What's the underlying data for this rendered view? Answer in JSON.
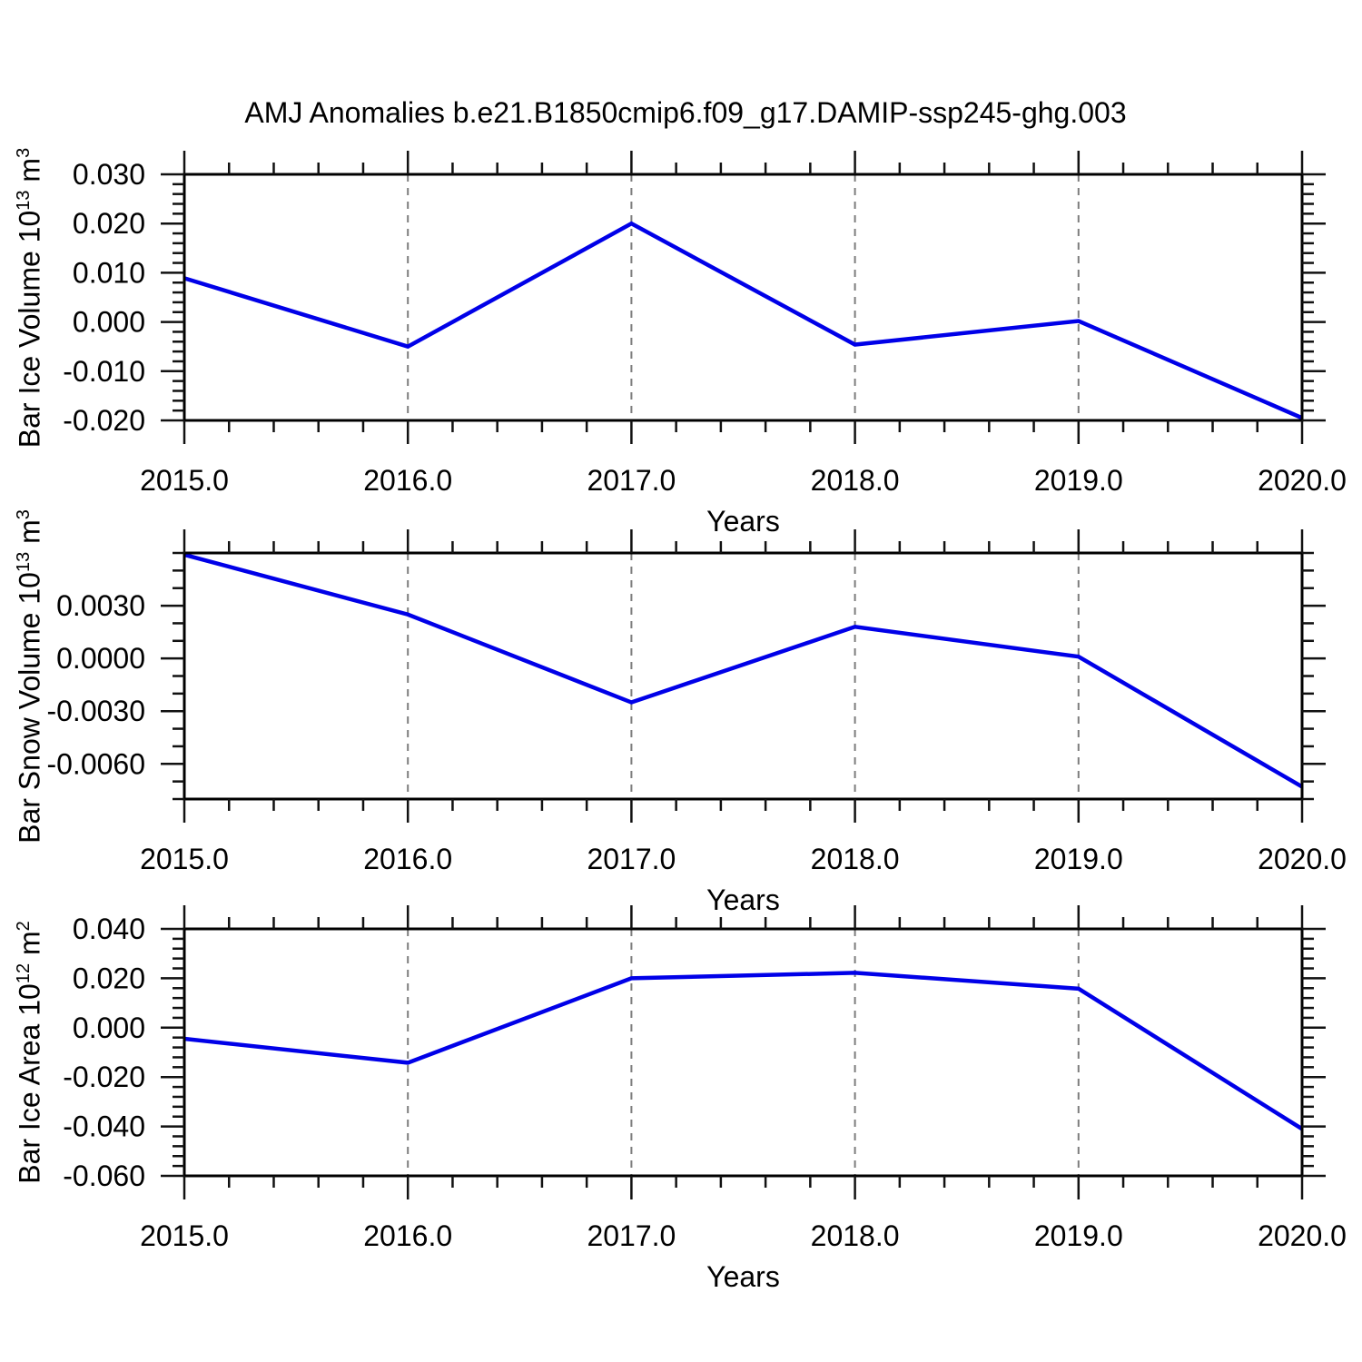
{
  "title": "AMJ Anomalies b.e21.B1850cmip6.f09_g17.DAMIP-ssp245-ghg.003",
  "colors": {
    "line": "#0000e8",
    "frame": "#000000",
    "tick": "#111111",
    "gridline": "#7d7d7d",
    "background": "#ffffff",
    "text": "#000000"
  },
  "chart_data": {
    "type": "line",
    "x": [
      2015,
      2016,
      2017,
      2018,
      2019,
      2020
    ],
    "x_tick_labels": [
      "2015.0",
      "2016.0",
      "2017.0",
      "2018.0",
      "2019.0",
      "2020.0"
    ],
    "x_minor_step": 0.2,
    "xlim": [
      2015,
      2020
    ],
    "xlabel": "Years",
    "gridline_x": [
      2016,
      2017,
      2018,
      2019
    ],
    "grid": "vertical-dashed",
    "legend": "none",
    "panels": [
      {
        "name": "ice-volume",
        "ylabel": "Bar Ice Volume 10^13 m^3",
        "ylabel_parts": {
          "base": "Bar Ice Volume 10",
          "exp": "13",
          "unit": " m",
          "unit_exp": "3"
        },
        "ylim": [
          -0.02,
          0.03
        ],
        "y_tick_values": [
          0.03,
          0.02,
          0.01,
          0,
          -0.01,
          -0.02
        ],
        "y_tick_labels": [
          "0.030",
          "0.020",
          "0.010",
          "0.000",
          "-0.010",
          "-0.020"
        ],
        "y_minor_step": 0.002,
        "values": [
          0.0089,
          -0.005,
          0.02,
          -0.0046,
          0.0002,
          -0.0195
        ]
      },
      {
        "name": "snow-volume",
        "ylabel": "Bar Snow Volume 10^13 m^3",
        "ylabel_parts": {
          "base": "Bar Snow Volume 10",
          "exp": "13",
          "unit": " m",
          "unit_exp": "3"
        },
        "ylim": [
          -0.008,
          0.006
        ],
        "y_tick_values": [
          0.003,
          0,
          -0.003,
          -0.006
        ],
        "y_tick_labels": [
          "0.0030",
          "0.0000",
          "-0.0030",
          "-0.0060"
        ],
        "y_minor_step": 0.001,
        "values": [
          0.0059,
          0.0025,
          -0.0025,
          0.0018,
          0.0001,
          -0.0073
        ]
      },
      {
        "name": "ice-area",
        "ylabel": "Bar Ice Area 10^12 m^2",
        "ylabel_parts": {
          "base": "Bar Ice Area 10",
          "exp": "12",
          "unit": " m",
          "unit_exp": "2"
        },
        "ylim": [
          -0.06,
          0.04
        ],
        "y_tick_values": [
          0.04,
          0.02,
          0,
          -0.02,
          -0.04,
          -0.06
        ],
        "y_tick_labels": [
          "0.040",
          "0.020",
          "0.000",
          "-0.020",
          "-0.040",
          "-0.060"
        ],
        "y_minor_step": 0.004,
        "values": [
          -0.0045,
          -0.0142,
          0.02,
          0.0222,
          0.0158,
          -0.041
        ]
      }
    ]
  }
}
